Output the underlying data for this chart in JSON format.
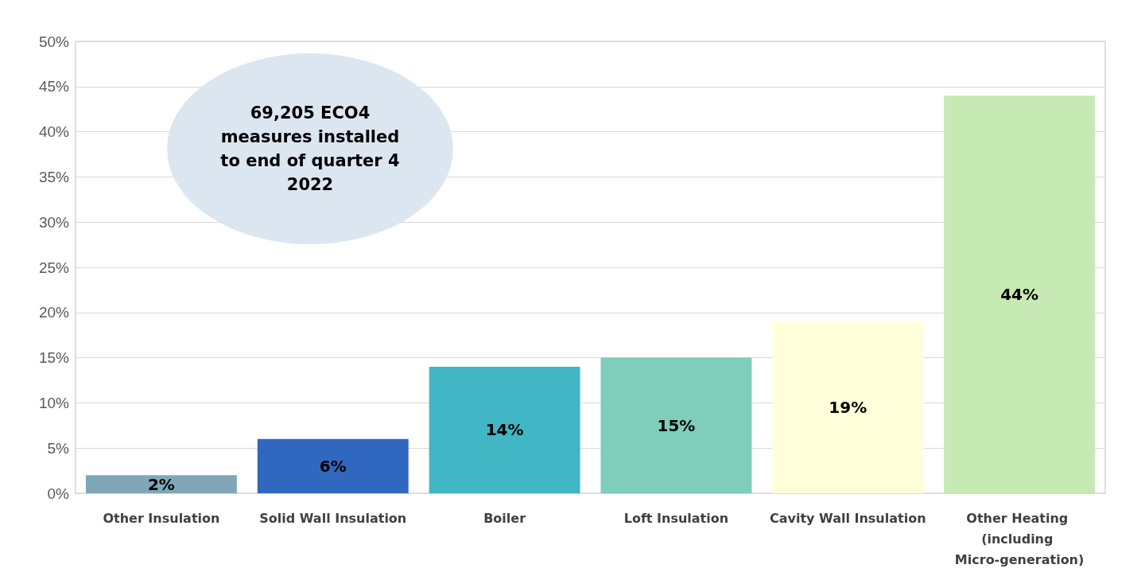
{
  "chart_data": {
    "type": "bar",
    "categories": [
      "Other Insulation",
      "Solid Wall Insulation",
      "Boiler",
      "Loft Insulation",
      "Cavity Wall Insulation",
      "Other Heating (including Micro-generation)"
    ],
    "values": [
      2,
      6,
      14,
      15,
      19,
      44
    ],
    "colors": [
      "#7fa7b9",
      "#3068c0",
      "#41b6c4",
      "#7fcdbb",
      "#ffffd9",
      "#c7e9b4"
    ],
    "ylim": [
      0,
      50
    ],
    "yticks": [
      {
        "value": 0,
        "label": "0%"
      },
      {
        "value": 5,
        "label": "5%"
      },
      {
        "value": 10,
        "label": "10%"
      },
      {
        "value": 15,
        "label": "15%"
      },
      {
        "value": 20,
        "label": "20%"
      },
      {
        "value": 25,
        "label": "25%"
      },
      {
        "value": 30,
        "label": "30%"
      },
      {
        "value": 35,
        "label": "35%"
      },
      {
        "value": 40,
        "label": "40%"
      },
      {
        "value": 45,
        "label": "45%"
      },
      {
        "value": 50,
        "label": "50%"
      }
    ],
    "value_labels": [
      "2%",
      "6%",
      "14%",
      "15%",
      "19%",
      "44%"
    ],
    "annotations": [
      "69,205 ECO4 measures installed to end of quarter 4 2022"
    ],
    "grid": "y"
  }
}
